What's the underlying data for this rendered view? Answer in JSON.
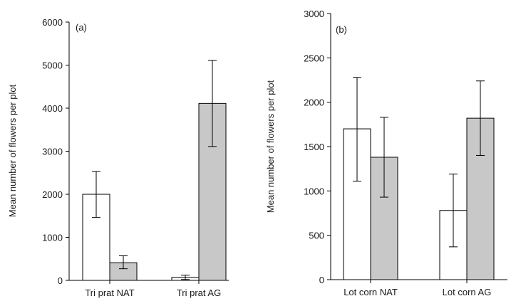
{
  "chart_data": [
    {
      "type": "bar",
      "panel_label": "(a)",
      "ylabel": "Mean number of flowers per plot",
      "ylim": [
        0,
        6000
      ],
      "yticks": [
        0,
        1000,
        2000,
        3000,
        4000,
        5000,
        6000
      ],
      "categories": [
        "Tri prat NAT",
        "Tri prat AG"
      ],
      "series": [
        {
          "fill": "#ffffff",
          "values": [
            2000,
            70
          ],
          "error_low": [
            1460,
            20
          ],
          "error_high": [
            2530,
            120
          ]
        },
        {
          "fill": "#c8c8c8",
          "values": [
            410,
            4110
          ],
          "error_low": [
            270,
            3110
          ],
          "error_high": [
            570,
            5110
          ]
        }
      ]
    },
    {
      "type": "bar",
      "panel_label": "(b)",
      "ylabel": "Mean number of flowers per plot",
      "ylim": [
        0,
        3000
      ],
      "yticks": [
        0,
        500,
        1000,
        1500,
        2000,
        2500,
        3000
      ],
      "categories": [
        "Lot corn NAT",
        "Lot corn AG"
      ],
      "series": [
        {
          "fill": "#ffffff",
          "values": [
            1700,
            780
          ],
          "error_low": [
            1110,
            370
          ],
          "error_high": [
            2280,
            1190
          ]
        },
        {
          "fill": "#c8c8c8",
          "values": [
            1380,
            1820
          ],
          "error_low": [
            930,
            1400
          ],
          "error_high": [
            1830,
            2240
          ]
        }
      ]
    }
  ]
}
